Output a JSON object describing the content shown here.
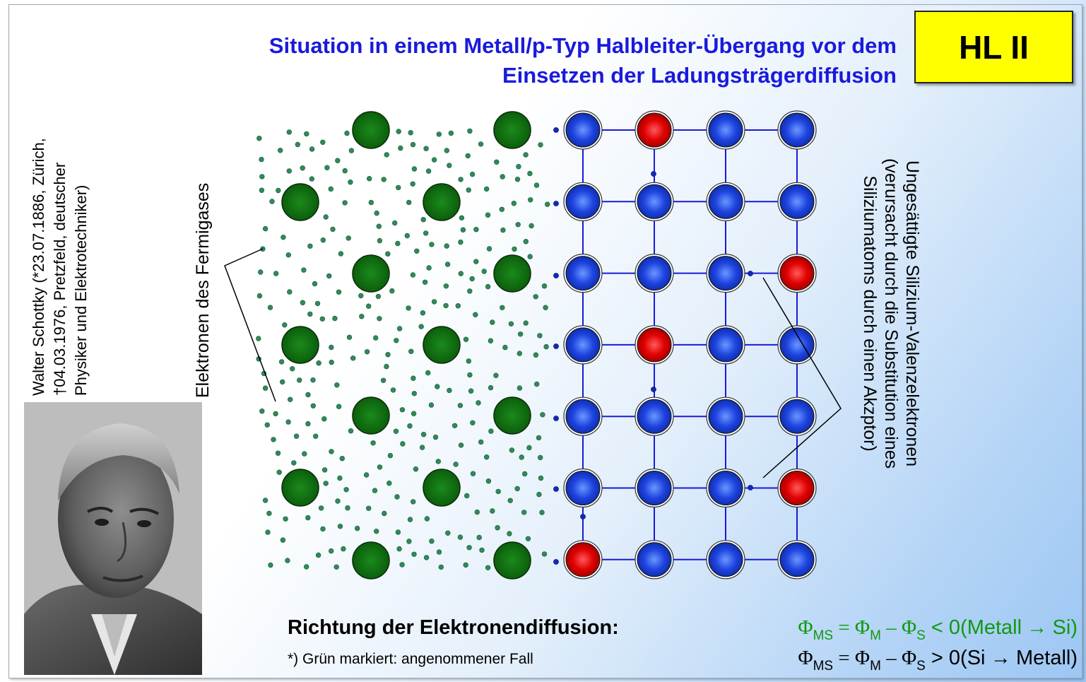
{
  "title": {
    "line1": "Situation in einem Metall/p-Typ Halbleiter-Übergang vor dem",
    "line2": "Einsetzen der Ladungsträgerdiffusion"
  },
  "badge": "HL II",
  "bio": {
    "line1": "Walter Schottky (*23.07.1886, Zürich,",
    "line2": "†04.03.1976, Pretzfeld, deutscher",
    "line3": "Physiker und Elektrotechniker)"
  },
  "fermi_label": "Elektronen des Fermigases",
  "si_label": {
    "line1": "Ungesättigte Silizium-Valenzelektronen",
    "line2": "(verursacht durch die Substitution eines",
    "line3": "Siliziumatoms durch einen Akzptor)"
  },
  "diffusion_heading": "Richtung der Elektronendiffusion:",
  "footnote": "*) Grün markiert: angenommener Fall",
  "equations": [
    {
      "lhs": "Φ",
      "lhs_sub": "MS",
      "eq": " = ",
      "a": "Φ",
      "a_sub": "M",
      "minus": " – ",
      "b": "Φ",
      "b_sub": "S",
      "rel": " < 0",
      "note": "(Metall",
      "arrow": "→",
      "note_end": "Si)"
    },
    {
      "lhs": "Φ",
      "lhs_sub": "MS",
      "eq": " = ",
      "a": "Φ",
      "a_sub": "M",
      "minus": " – ",
      "b": "Φ",
      "b_sub": "S",
      "rel": " > 0",
      "note": "(Si",
      "arrow": "→",
      "note_end": "Metall)"
    }
  ],
  "colors": {
    "title": "#1a1adc",
    "metal_ion": "#0a6a0a",
    "fermi_electron": "#2f8a5a",
    "si_atom": "#1f44e0",
    "acceptor_atom": "#e00000",
    "bond": "#1a1ad8",
    "badge": "#ffff00",
    "eq_highlight": "#119911"
  },
  "lattice": {
    "rows": 7,
    "cols": 4,
    "acceptor_positions": [
      [
        0,
        1
      ],
      [
        2,
        3
      ],
      [
        3,
        1
      ],
      [
        5,
        3
      ],
      [
        6,
        0
      ]
    ]
  },
  "photo": {
    "description_icon": "portrait-photo"
  }
}
